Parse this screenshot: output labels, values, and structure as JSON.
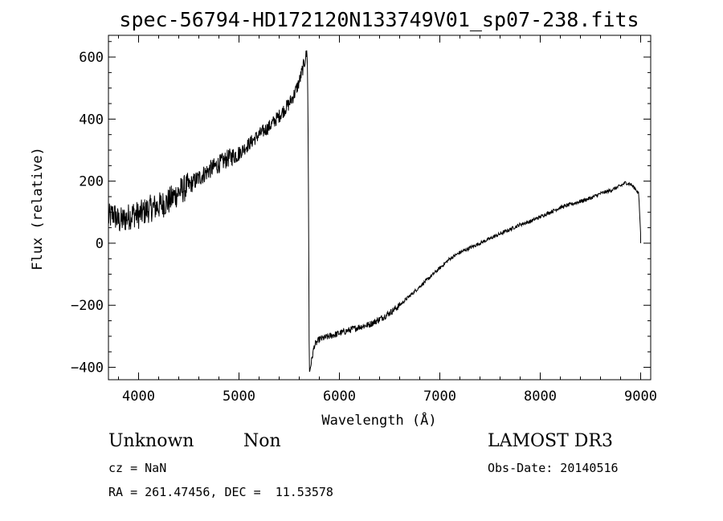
{
  "chart_data": {
    "type": "line",
    "title": "spec-56794-HD172120N133749V01_sp07-238.fits",
    "xlabel": "Wavelength (Å)",
    "ylabel": "Flux (relative)",
    "xlim": [
      3700,
      9100
    ],
    "ylim": [
      -440,
      670
    ],
    "xticks": [
      4000,
      5000,
      6000,
      7000,
      8000,
      9000
    ],
    "yticks": [
      -400,
      -200,
      0,
      200,
      400,
      600
    ],
    "series": [
      {
        "name": "flux",
        "x": [
          3700,
          3750,
          3800,
          3850,
          3900,
          3950,
          4000,
          4100,
          4200,
          4300,
          4400,
          4500,
          4600,
          4700,
          4800,
          4900,
          5000,
          5100,
          5200,
          5300,
          5400,
          5500,
          5550,
          5600,
          5650,
          5680,
          5690,
          5700,
          5750,
          5800,
          5900,
          6000,
          6100,
          6200,
          6300,
          6400,
          6500,
          6600,
          6700,
          6800,
          6900,
          7000,
          7100,
          7200,
          7300,
          7400,
          7500,
          7600,
          7700,
          7800,
          7900,
          8000,
          8100,
          8200,
          8300,
          8400,
          8500,
          8600,
          8700,
          8800,
          8850,
          8900,
          8950,
          8980,
          9000
        ],
        "y": [
          80,
          95,
          70,
          75,
          85,
          95,
          90,
          110,
          120,
          135,
          165,
          185,
          210,
          235,
          255,
          275,
          290,
          320,
          350,
          375,
          410,
          450,
          480,
          520,
          580,
          620,
          300,
          -420,
          -330,
          -310,
          -300,
          -290,
          -280,
          -270,
          -262,
          -245,
          -225,
          -200,
          -170,
          -140,
          -110,
          -80,
          -50,
          -30,
          -15,
          0,
          15,
          30,
          45,
          60,
          70,
          85,
          100,
          115,
          125,
          135,
          145,
          160,
          170,
          185,
          195,
          190,
          175,
          160,
          30
        ]
      }
    ]
  },
  "info": {
    "object_class": "Unknown",
    "object_subclass": "Non",
    "survey": "LAMOST DR3",
    "redshift": "cz = NaN",
    "obs_date": "Obs-Date: 20140516",
    "coords": "RA = 261.47456, DEC =  11.53578"
  }
}
